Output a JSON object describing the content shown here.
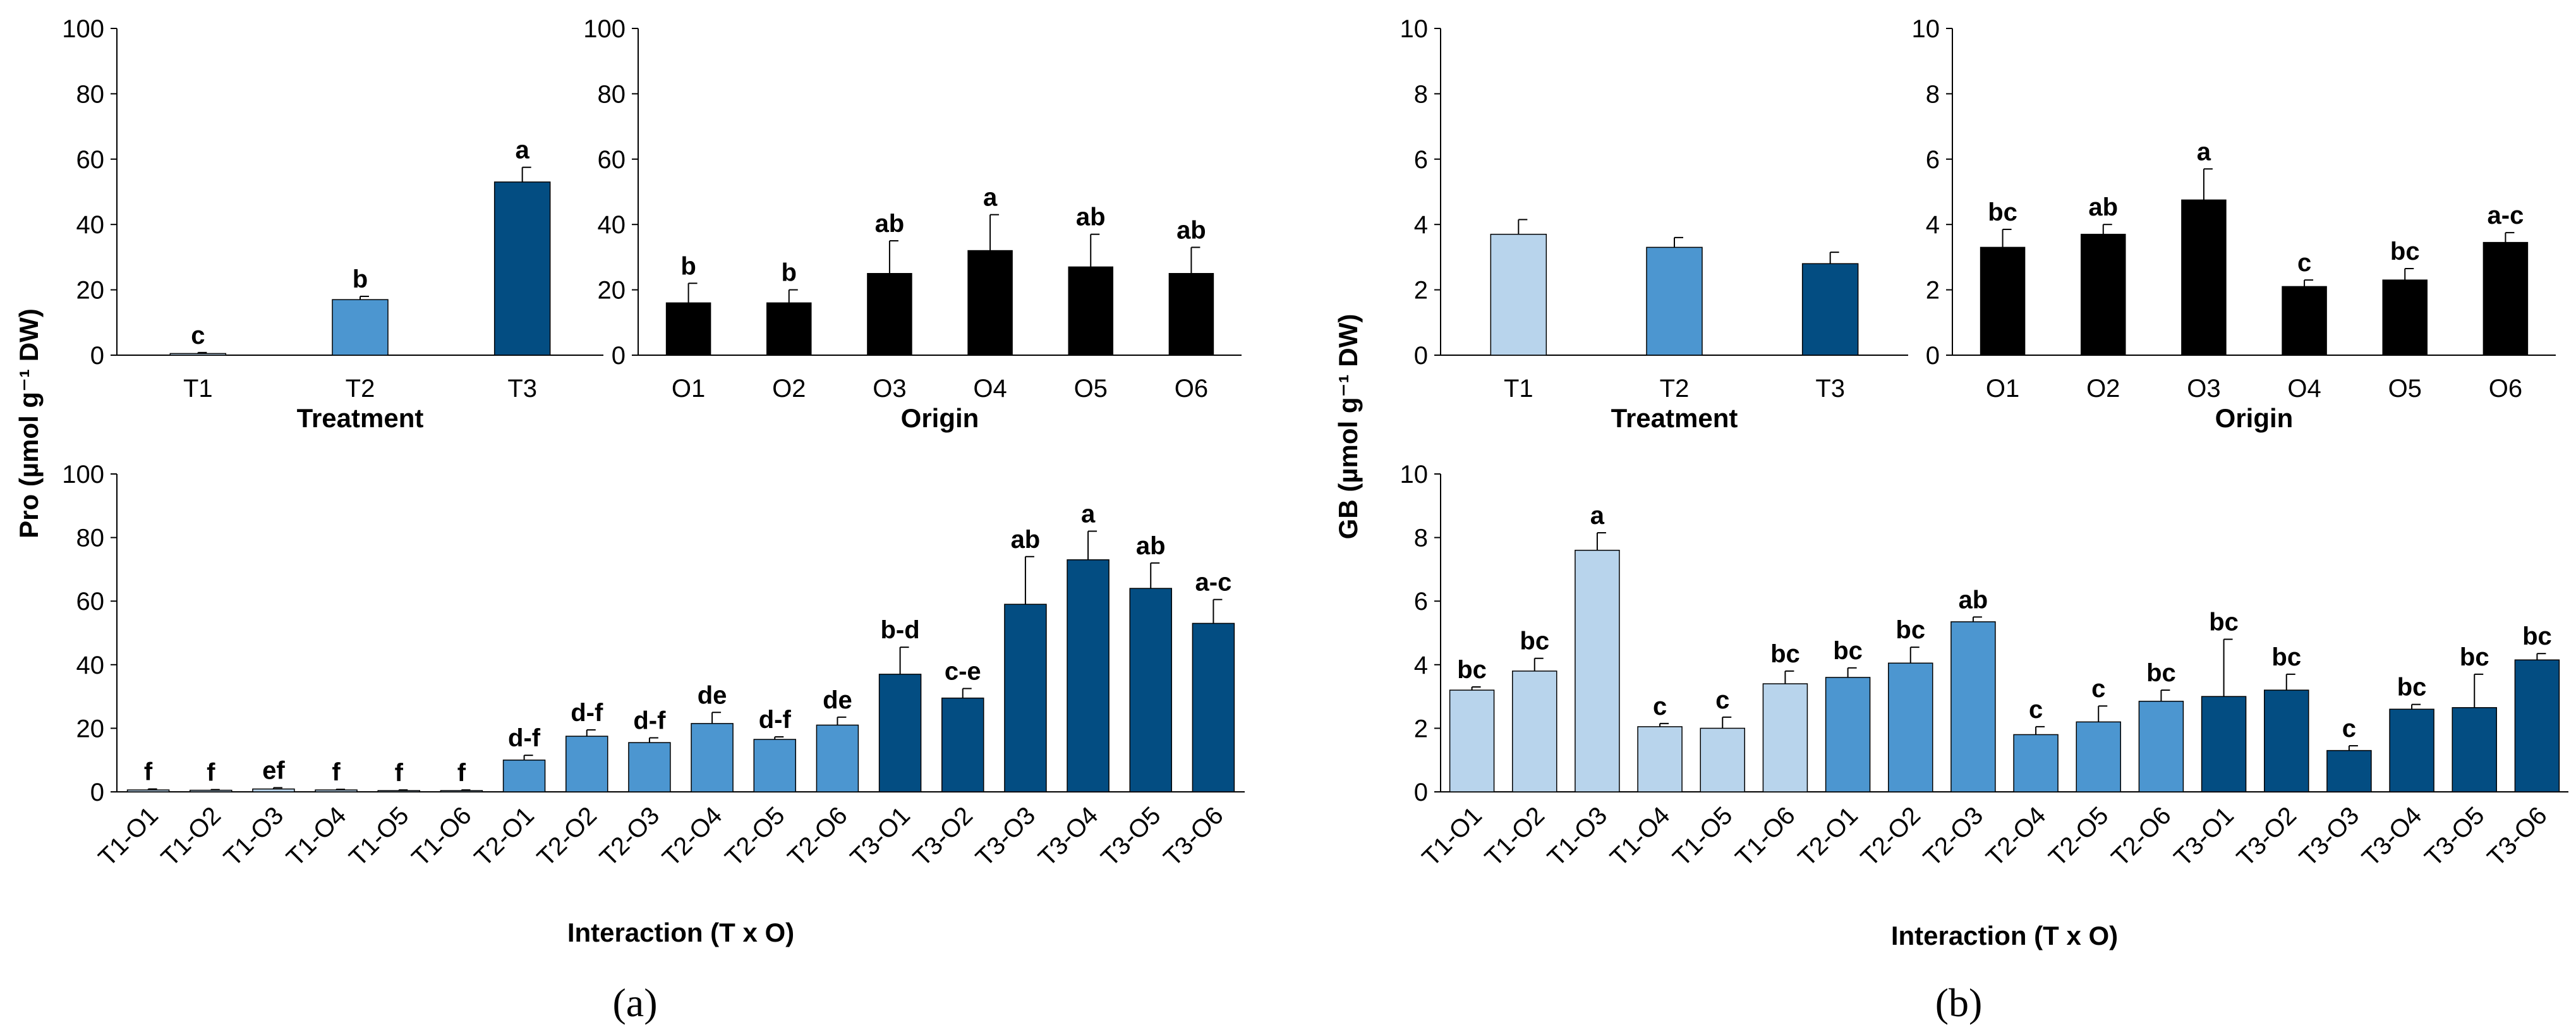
{
  "colors": {
    "T1": "#b8d4ec",
    "T2": "#4c96d0",
    "T3": "#034d82",
    "origin": "#000000"
  },
  "panels": [
    {
      "label": "(a)",
      "ylabel": "Pro (µmol g⁻¹ DW)"
    },
    {
      "label": "(b)",
      "ylabel": "GB (µmol g⁻¹ DW)"
    }
  ],
  "chart_data": [
    {
      "type": "bar",
      "panel": "a",
      "title": "",
      "xlabel": "Treatment",
      "ylabel": "Pro (µmol g⁻¹ DW)",
      "ylim": [
        0,
        100
      ],
      "yticks": [
        0,
        20,
        40,
        60,
        80,
        100
      ],
      "categories": [
        "T1",
        "T2",
        "T3"
      ],
      "values": [
        0.5,
        17,
        53
      ],
      "errors": [
        0.3,
        1,
        4.5
      ],
      "letters": [
        "c",
        "b",
        "a"
      ],
      "colors": [
        "#b8d4ec",
        "#4c96d0",
        "#034d82"
      ]
    },
    {
      "type": "bar",
      "panel": "a",
      "title": "",
      "xlabel": "Origin",
      "ylabel": "",
      "ylim": [
        0,
        100
      ],
      "yticks": [
        0,
        20,
        40,
        60,
        80,
        100
      ],
      "categories": [
        "O1",
        "O2",
        "O3",
        "O4",
        "O5",
        "O6"
      ],
      "values": [
        16,
        16,
        25,
        32,
        27,
        25
      ],
      "errors": [
        6,
        4,
        10,
        11,
        10,
        8
      ],
      "letters": [
        "b",
        "b",
        "ab",
        "a",
        "ab",
        "ab"
      ],
      "colors": [
        "#000000",
        "#000000",
        "#000000",
        "#000000",
        "#000000",
        "#000000"
      ]
    },
    {
      "type": "bar",
      "panel": "a",
      "title": "",
      "xlabel": "Interaction (T x O)",
      "ylabel": "Pro (µmol g⁻¹ DW)",
      "ylim": [
        0,
        100
      ],
      "yticks": [
        0,
        20,
        40,
        60,
        80,
        100
      ],
      "categories": [
        "T1-O1",
        "T1-O2",
        "T1-O3",
        "T1-O4",
        "T1-O5",
        "T1-O6",
        "T2-O1",
        "T2-O2",
        "T2-O3",
        "T2-O4",
        "T2-O5",
        "T2-O6",
        "T3-O1",
        "T3-O2",
        "T3-O3",
        "T3-O4",
        "T3-O5",
        "T3-O6"
      ],
      "values": [
        0.6,
        0.5,
        0.9,
        0.6,
        0.4,
        0.4,
        10,
        17.5,
        15.5,
        21.5,
        16.5,
        21,
        37,
        29.5,
        59,
        73,
        64,
        53
      ],
      "errors": [
        0.3,
        0.2,
        0.4,
        0.2,
        0.2,
        0.2,
        1.5,
        2,
        1.5,
        3.5,
        0.8,
        2.5,
        8.5,
        3,
        15,
        9,
        8,
        7.5
      ],
      "letters": [
        "f",
        "f",
        "ef",
        "f",
        "f",
        "f",
        "d-f",
        "d-f",
        "d-f",
        "de",
        "d-f",
        "de",
        "b-d",
        "c-e",
        "ab",
        "a",
        "ab",
        "a-c"
      ],
      "colors": [
        "#b8d4ec",
        "#b8d4ec",
        "#b8d4ec",
        "#b8d4ec",
        "#b8d4ec",
        "#b8d4ec",
        "#4c96d0",
        "#4c96d0",
        "#4c96d0",
        "#4c96d0",
        "#4c96d0",
        "#4c96d0",
        "#034d82",
        "#034d82",
        "#034d82",
        "#034d82",
        "#034d82",
        "#034d82"
      ]
    },
    {
      "type": "bar",
      "panel": "b",
      "title": "",
      "xlabel": "Treatment",
      "ylabel": "GB (µmol g⁻¹ DW)",
      "ylim": [
        0,
        10
      ],
      "yticks": [
        0,
        2,
        4,
        6,
        8,
        10
      ],
      "categories": [
        "T1",
        "T2",
        "T3"
      ],
      "values": [
        3.7,
        3.3,
        2.8
      ],
      "errors": [
        0.45,
        0.3,
        0.35
      ],
      "letters": [
        "",
        "",
        ""
      ],
      "colors": [
        "#b8d4ec",
        "#4c96d0",
        "#034d82"
      ]
    },
    {
      "type": "bar",
      "panel": "b",
      "title": "",
      "xlabel": "Origin",
      "ylabel": "",
      "ylim": [
        0,
        10
      ],
      "yticks": [
        0,
        2,
        4,
        6,
        8,
        10
      ],
      "categories": [
        "O1",
        "O2",
        "O3",
        "O4",
        "O5",
        "O6"
      ],
      "values": [
        3.3,
        3.7,
        4.75,
        2.1,
        2.3,
        3.45
      ],
      "errors": [
        0.55,
        0.3,
        0.95,
        0.2,
        0.35,
        0.3
      ],
      "letters": [
        "bc",
        "ab",
        "a",
        "c",
        "bc",
        "a-c"
      ],
      "colors": [
        "#000000",
        "#000000",
        "#000000",
        "#000000",
        "#000000",
        "#000000"
      ]
    },
    {
      "type": "bar",
      "panel": "b",
      "title": "",
      "xlabel": "Interaction (T x O)",
      "ylabel": "GB (µmol g⁻¹ DW)",
      "ylim": [
        0,
        10
      ],
      "yticks": [
        0,
        2,
        4,
        6,
        8,
        10
      ],
      "categories": [
        "T1-O1",
        "T1-O2",
        "T1-O3",
        "T1-O4",
        "T1-O5",
        "T1-O6",
        "T2-O1",
        "T2-O2",
        "T2-O3",
        "T2-O4",
        "T2-O5",
        "T2-O6",
        "T3-O1",
        "T3-O2",
        "T3-O3",
        "T3-O4",
        "T3-O5",
        "T3-O6"
      ],
      "values": [
        3.2,
        3.8,
        7.6,
        2.05,
        2.0,
        3.4,
        3.6,
        4.05,
        5.35,
        1.8,
        2.2,
        2.85,
        3.0,
        3.2,
        1.3,
        2.6,
        2.65,
        4.15
      ],
      "errors": [
        0.1,
        0.4,
        0.55,
        0.1,
        0.35,
        0.4,
        0.3,
        0.5,
        0.15,
        0.25,
        0.5,
        0.35,
        1.8,
        0.5,
        0.15,
        0.15,
        1.05,
        0.2
      ],
      "letters": [
        "bc",
        "bc",
        "a",
        "c",
        "c",
        "bc",
        "bc",
        "bc",
        "ab",
        "c",
        "c",
        "bc",
        "bc",
        "bc",
        "c",
        "bc",
        "bc",
        "bc"
      ],
      "colors": [
        "#b8d4ec",
        "#b8d4ec",
        "#b8d4ec",
        "#b8d4ec",
        "#b8d4ec",
        "#b8d4ec",
        "#4c96d0",
        "#4c96d0",
        "#4c96d0",
        "#4c96d0",
        "#4c96d0",
        "#4c96d0",
        "#034d82",
        "#034d82",
        "#034d82",
        "#034d82",
        "#034d82",
        "#034d82"
      ]
    }
  ]
}
